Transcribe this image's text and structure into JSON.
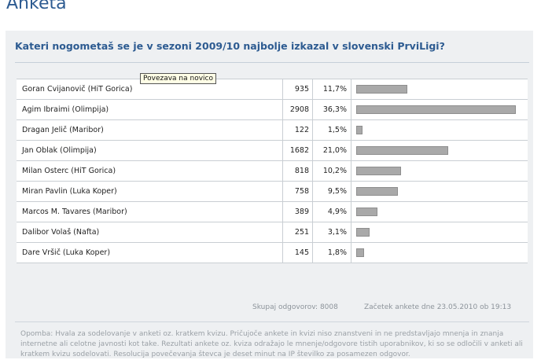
{
  "page": {
    "title": "Anketa"
  },
  "poll": {
    "question": "Kateri nogometaš se je v sezoni 2009/10 najbolje izkazal v slovenski PrviLigi?",
    "tooltip": "Povezava na novico",
    "rows": [
      {
        "name": "Goran Cvijanovič (HiT Gorica)",
        "votes": "935",
        "pct": "11,7%",
        "share": 0.117
      },
      {
        "name": "Agim Ibraimi (Olimpija)",
        "votes": "2908",
        "pct": "36,3%",
        "share": 0.363
      },
      {
        "name": "Dragan Jelič (Maribor)",
        "votes": "122",
        "pct": "1,5%",
        "share": 0.015
      },
      {
        "name": "Jan Oblak (Olimpija)",
        "votes": "1682",
        "pct": "21,0%",
        "share": 0.21
      },
      {
        "name": "Milan Osterc (HiT Gorica)",
        "votes": "818",
        "pct": "10,2%",
        "share": 0.102
      },
      {
        "name": "Miran Pavlin (Luka Koper)",
        "votes": "758",
        "pct": "9,5%",
        "share": 0.095
      },
      {
        "name": "Marcos M. Tavares (Maribor)",
        "votes": "389",
        "pct": "4,9%",
        "share": 0.049
      },
      {
        "name": "Dalibor Volaš (Nafta)",
        "votes": "251",
        "pct": "3,1%",
        "share": 0.031
      },
      {
        "name": "Dare Vršič (Luka Koper)",
        "votes": "145",
        "pct": "1,8%",
        "share": 0.018
      }
    ],
    "total_votes": "Skupaj odgovorov: 8008",
    "start_date": "Začetek ankete dne 23.05.2010 ob 19:13",
    "note": "Opomba: Hvala za sodelovanje v anketi oz. kratkem kvizu. Pričujoče ankete in kvizi niso znanstveni in ne predstavljajo mnenja in znanja internetne ali celotne javnosti kot take. Rezultati ankete oz. kviza odražajo le mnenje/odgovore tistih uporabnikov, ki so se odločili v anketi ali kratkem kvizu sodelovati. Resolucija povečevanja števca je deset minut na IP številko za posamezen odgovor."
  },
  "colors": {
    "accent": "#2d5b91",
    "bar": "#a9a9a9",
    "panel": "#eef0f2"
  }
}
